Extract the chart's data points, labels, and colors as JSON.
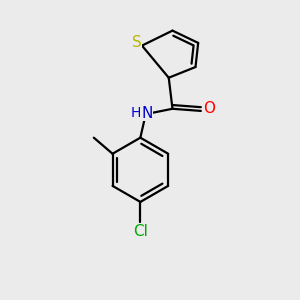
{
  "bg_color": "#ebebeb",
  "bond_color": "#000000",
  "bond_width": 1.6,
  "atom_colors": {
    "S": "#b8b800",
    "N": "#0000cc",
    "O": "#ff0000",
    "Cl": "#00aa00",
    "C": "#000000"
  },
  "font_size": 11,
  "fig_size": [
    3.0,
    3.0
  ],
  "dpi": 100
}
